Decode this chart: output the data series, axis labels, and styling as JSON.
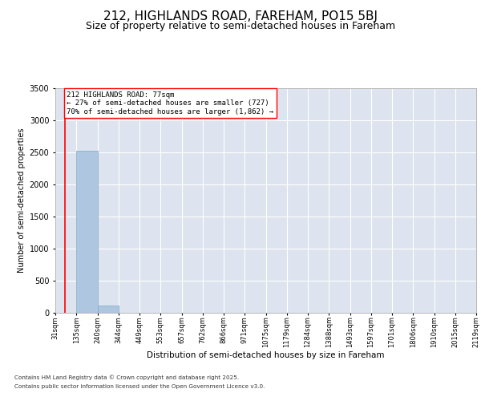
{
  "title": "212, HIGHLANDS ROAD, FAREHAM, PO15 5BJ",
  "subtitle": "Size of property relative to semi-detached houses in Fareham",
  "xlabel": "Distribution of semi-detached houses by size in Fareham",
  "ylabel": "Number of semi-detached properties",
  "bin_labels": [
    "31sqm",
    "135sqm",
    "240sqm",
    "344sqm",
    "449sqm",
    "553sqm",
    "657sqm",
    "762sqm",
    "866sqm",
    "971sqm",
    "1075sqm",
    "1179sqm",
    "1284sqm",
    "1388sqm",
    "1493sqm",
    "1597sqm",
    "1701sqm",
    "1806sqm",
    "1910sqm",
    "2015sqm",
    "2119sqm"
  ],
  "bar_values": [
    0,
    2530,
    110,
    0,
    0,
    0,
    0,
    0,
    0,
    0,
    0,
    0,
    0,
    0,
    0,
    0,
    0,
    0,
    0,
    0
  ],
  "bar_color": "#aec6e0",
  "bar_edge_color": "#7aaac8",
  "property_line_color": "red",
  "property_line_bin": 0.42,
  "annotation_text": "212 HIGHLANDS ROAD: 77sqm\n← 27% of semi-detached houses are smaller (727)\n70% of semi-detached houses are larger (1,862) →",
  "ylim": [
    0,
    3500
  ],
  "yticks": [
    0,
    500,
    1000,
    1500,
    2000,
    2500,
    3000,
    3500
  ],
  "background_color": "#dde4ef",
  "grid_color": "white",
  "footer_line1": "Contains HM Land Registry data © Crown copyright and database right 2025.",
  "footer_line2": "Contains public sector information licensed under the Open Government Licence v3.0.",
  "title_fontsize": 11,
  "subtitle_fontsize": 9,
  "annotation_fontsize": 6.5,
  "ylabel_fontsize": 7,
  "xlabel_fontsize": 7.5,
  "tick_fontsize": 6,
  "ytick_fontsize": 7
}
